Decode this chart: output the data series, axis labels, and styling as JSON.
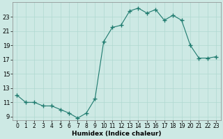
{
  "x": [
    0,
    1,
    2,
    3,
    4,
    5,
    6,
    7,
    8,
    9,
    10,
    11,
    12,
    13,
    14,
    15,
    16,
    17,
    18,
    19,
    20,
    21,
    22,
    23
  ],
  "y": [
    12.0,
    11.0,
    11.0,
    10.5,
    10.5,
    10.0,
    9.5,
    8.8,
    9.5,
    11.5,
    19.5,
    21.5,
    21.8,
    23.8,
    24.2,
    23.5,
    24.0,
    22.5,
    23.2,
    22.5,
    19.0,
    17.2,
    17.2,
    17.4
  ],
  "xlabel": "Humidex (Indice chaleur)",
  "bg_color": "#cde9e4",
  "line_color": "#1e7a6e",
  "grid_color": "#b0d8d0",
  "xlim": [
    -0.5,
    23.5
  ],
  "ylim": [
    8.5,
    25.0
  ],
  "yticks": [
    9,
    11,
    13,
    15,
    17,
    19,
    21,
    23
  ],
  "xticks": [
    0,
    1,
    2,
    3,
    4,
    5,
    6,
    7,
    8,
    9,
    10,
    11,
    12,
    13,
    14,
    15,
    16,
    17,
    18,
    19,
    20,
    21,
    22,
    23
  ]
}
